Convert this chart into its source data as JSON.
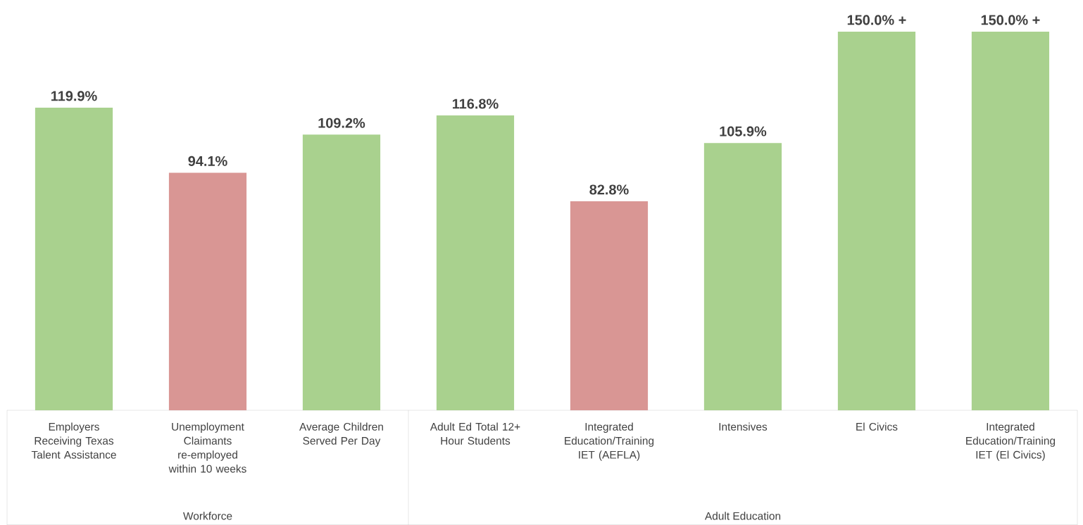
{
  "chart_data": {
    "type": "bar",
    "categories": [
      "Employers Receiving Texas Talent Assistance",
      "Unemployment Claimants re-employed within 10 weeks",
      "Average Children Served Per Day",
      "Adult Ed Total 12+ Hour Students",
      "Integrated Education/Training IET (AEFLA)",
      "Intensives",
      "El Civics",
      "Integrated Education/Training IET (El Civics)"
    ],
    "values": [
      119.9,
      94.1,
      109.2,
      116.8,
      82.8,
      105.9,
      150.0,
      150.0
    ],
    "value_labels": [
      "119.9%",
      "94.1%",
      "109.2%",
      "116.8%",
      "82.8%",
      "105.9%",
      "150.0% +",
      "150.0% +"
    ],
    "colors": [
      "#a9d18e",
      "#d99694",
      "#a9d18e",
      "#a9d18e",
      "#d99694",
      "#a9d18e",
      "#a9d18e",
      "#a9d18e"
    ],
    "annotations": [
      "Workforce",
      "Adult Education"
    ]
  }
}
